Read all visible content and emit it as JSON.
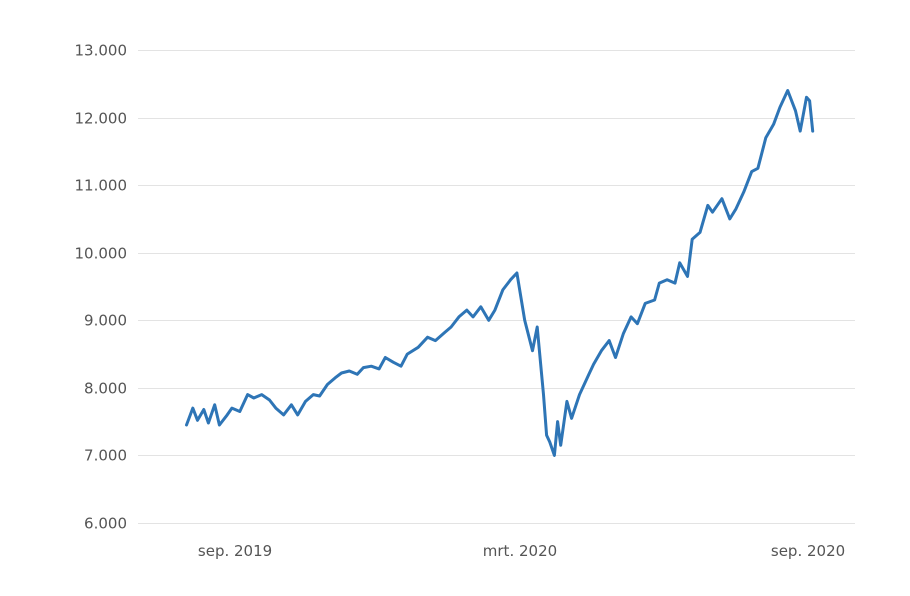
{
  "chart_data": {
    "type": "line",
    "title": "",
    "xlabel": "",
    "ylabel": "",
    "x_axis": {
      "ticks": [
        {
          "label": "sep. 2019",
          "date": "2019-09-01"
        },
        {
          "label": "mrt. 2020",
          "date": "2020-03-01"
        },
        {
          "label": "sep. 2020",
          "date": "2020-09-01"
        }
      ],
      "range": [
        "2019-07-01",
        "2020-10-01"
      ]
    },
    "y_axis": {
      "ticks": [
        {
          "label": "6.000",
          "value": 6000
        },
        {
          "label": "7.000",
          "value": 7000
        },
        {
          "label": "8.000",
          "value": 8000
        },
        {
          "label": "9.000",
          "value": 9000
        },
        {
          "label": "10.000",
          "value": 10000
        },
        {
          "label": "11.000",
          "value": 11000
        },
        {
          "label": "12.000",
          "value": 12000
        },
        {
          "label": "13.000",
          "value": 13000
        }
      ],
      "range": [
        6000,
        13000
      ]
    },
    "grid": true,
    "legend": "none",
    "color": "#2e75b6",
    "series": [
      {
        "x": [
          "2019-08-01",
          "2019-08-05",
          "2019-08-08",
          "2019-08-12",
          "2019-08-15",
          "2019-08-19",
          "2019-08-22",
          "2019-08-27",
          "2019-08-30",
          "2019-09-04",
          "2019-09-09",
          "2019-09-13",
          "2019-09-18",
          "2019-09-23",
          "2019-09-27",
          "2019-10-02",
          "2019-10-07",
          "2019-10-11",
          "2019-10-16",
          "2019-10-21",
          "2019-10-25",
          "2019-10-30",
          "2019-11-04",
          "2019-11-08",
          "2019-11-13",
          "2019-11-18",
          "2019-11-22",
          "2019-11-27",
          "2019-12-02",
          "2019-12-06",
          "2019-12-11",
          "2019-12-16",
          "2019-12-20",
          "2019-12-27",
          "2020-01-02",
          "2020-01-07",
          "2020-01-13",
          "2020-01-17",
          "2020-01-22",
          "2020-01-27",
          "2020-01-31",
          "2020-02-05",
          "2020-02-10",
          "2020-02-14",
          "2020-02-19",
          "2020-02-24",
          "2020-02-28",
          "2020-03-04",
          "2020-03-09",
          "2020-03-12",
          "2020-03-16",
          "2020-03-18",
          "2020-03-20",
          "2020-03-23",
          "2020-03-25",
          "2020-03-27",
          "2020-03-31",
          "2020-04-03",
          "2020-04-08",
          "2020-04-14",
          "2020-04-17",
          "2020-04-22",
          "2020-04-27",
          "2020-05-01",
          "2020-05-06",
          "2020-05-11",
          "2020-05-15",
          "2020-05-20",
          "2020-05-26",
          "2020-05-29",
          "2020-06-03",
          "2020-06-08",
          "2020-06-11",
          "2020-06-16",
          "2020-06-19",
          "2020-06-24",
          "2020-06-29",
          "2020-07-02",
          "2020-07-08",
          "2020-07-13",
          "2020-07-17",
          "2020-07-22",
          "2020-07-27",
          "2020-07-31",
          "2020-08-05",
          "2020-08-10",
          "2020-08-14",
          "2020-08-19",
          "2020-08-24",
          "2020-08-27",
          "2020-08-31",
          "2020-09-02",
          "2020-09-04"
        ],
        "y": [
          7450,
          7700,
          7520,
          7680,
          7480,
          7750,
          7450,
          7600,
          7700,
          7650,
          7900,
          7850,
          7900,
          7820,
          7700,
          7600,
          7750,
          7600,
          7800,
          7900,
          7880,
          8050,
          8150,
          8220,
          8250,
          8200,
          8300,
          8320,
          8280,
          8450,
          8380,
          8320,
          8500,
          8600,
          8750,
          8700,
          8820,
          8900,
          9050,
          9150,
          9050,
          9200,
          9000,
          9150,
          9450,
          9600,
          9700,
          9000,
          8550,
          8900,
          7900,
          7300,
          7200,
          7000,
          7500,
          7150,
          7800,
          7550,
          7900,
          8200,
          8350,
          8550,
          8700,
          8450,
          8800,
          9050,
          8950,
          9250,
          9300,
          9550,
          9600,
          9550,
          9850,
          9650,
          10200,
          10300,
          10700,
          10600,
          10800,
          10500,
          10650,
          10900,
          11200,
          11250,
          11700,
          11900,
          12150,
          12400,
          12100,
          11800,
          12300,
          12250,
          11800
        ]
      }
    ]
  }
}
